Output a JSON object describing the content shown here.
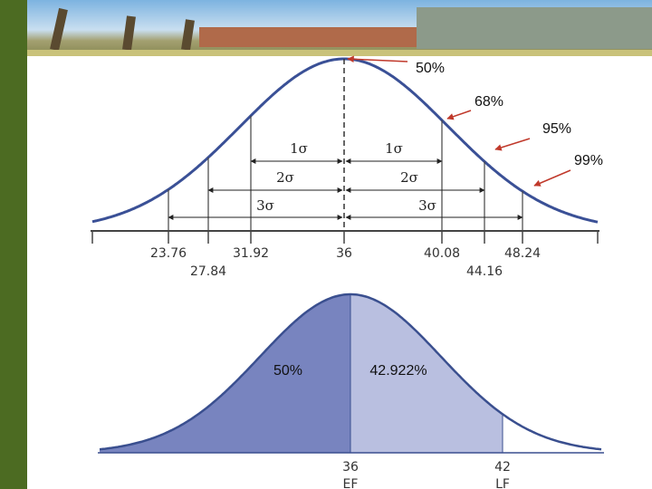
{
  "top_figure": {
    "callouts": [
      "50%",
      "68%",
      "95%",
      "99%"
    ],
    "sigma_labels": [
      "1σ",
      "1σ",
      "2σ",
      "2σ",
      "3σ",
      "3σ"
    ],
    "axis_labels": [
      "23.76",
      "31.92",
      "36",
      "40.08",
      "48.24",
      "27.84",
      "44.16"
    ]
  },
  "bottom_figure": {
    "area_labels": [
      "50%",
      "42.922%"
    ],
    "axis_labels": [
      {
        "value": "36",
        "name": "EF"
      },
      {
        "value": "42",
        "name": "LF"
      }
    ]
  }
}
